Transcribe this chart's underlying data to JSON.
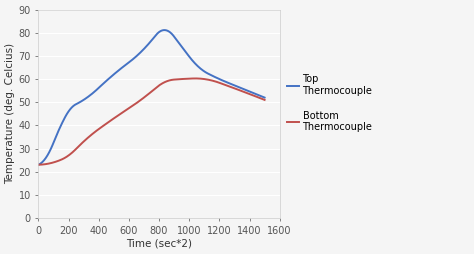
{
  "top_x": [
    0,
    50,
    150,
    200,
    300,
    500,
    700,
    850,
    950,
    1050,
    1200,
    1350,
    1500
  ],
  "top_y": [
    23,
    26,
    40,
    46,
    51,
    62,
    73,
    81,
    74,
    66,
    60,
    56,
    52
  ],
  "bottom_x": [
    0,
    100,
    200,
    300,
    500,
    700,
    850,
    950,
    1100,
    1300,
    1500
  ],
  "bottom_y": [
    23,
    24,
    27,
    33,
    43,
    52,
    59,
    60,
    60,
    56,
    51
  ],
  "top_color": "#4472C4",
  "bottom_color": "#C0504D",
  "top_label": "Top\nThermocouple",
  "bottom_label": "Bottom\nThermocouple",
  "xlabel": "Time (sec*2)",
  "ylabel": "Temperature (deg. Celcius)",
  "xlim": [
    0,
    1600
  ],
  "ylim": [
    0,
    90
  ],
  "xticks": [
    0,
    200,
    400,
    600,
    800,
    1000,
    1200,
    1400,
    1600
  ],
  "yticks": [
    0,
    10,
    20,
    30,
    40,
    50,
    60,
    70,
    80,
    90
  ],
  "background_color": "#f5f5f5",
  "plot_bg_color": "#f5f5f5",
  "grid_color": "#ffffff",
  "line_width": 1.4,
  "font_size": 7
}
